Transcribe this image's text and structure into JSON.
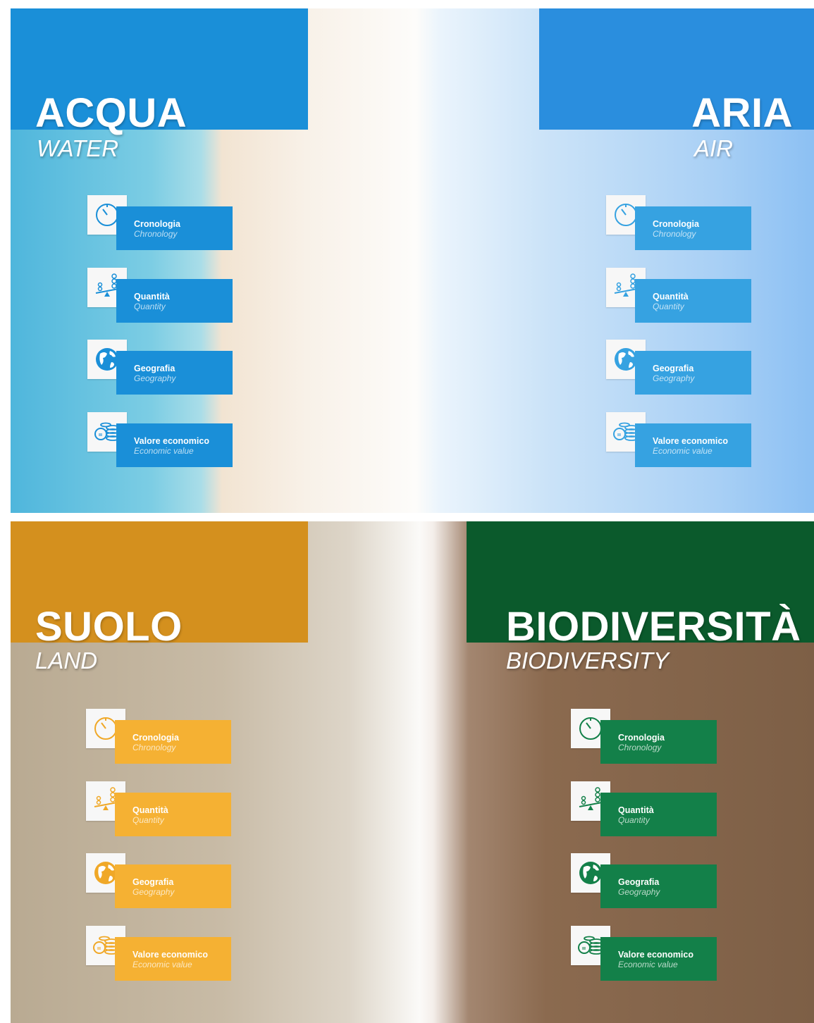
{
  "panels": [
    {
      "title": "ACQUA",
      "subtitle": "WATER",
      "items": [
        {
          "label": "Cronologia",
          "sublabel": "Chronology"
        },
        {
          "label": "Quantità",
          "sublabel": "Quantity"
        },
        {
          "label": "Geografia",
          "sublabel": "Geography"
        },
        {
          "label": "Valore economico",
          "sublabel": "Economic value"
        }
      ]
    },
    {
      "title": "ARIA",
      "subtitle": "AIR",
      "items": [
        {
          "label": "Cronologia",
          "sublabel": "Chronology"
        },
        {
          "label": "Quantità",
          "sublabel": "Quantity"
        },
        {
          "label": "Geografia",
          "sublabel": "Geography"
        },
        {
          "label": "Valore economico",
          "sublabel": "Economic value"
        }
      ]
    },
    {
      "title": "SUOLO",
      "subtitle": "LAND",
      "items": [
        {
          "label": "Cronologia",
          "sublabel": "Chronology"
        },
        {
          "label": "Quantità",
          "sublabel": "Quantity"
        },
        {
          "label": "Geografia",
          "sublabel": "Geography"
        },
        {
          "label": "Valore economico",
          "sublabel": "Economic value"
        }
      ]
    },
    {
      "title": "BIODIVERSITÀ",
      "subtitle": "BIODIVERSITY",
      "items": [
        {
          "label": "Cronologia",
          "sublabel": "Chronology"
        },
        {
          "label": "Quantità",
          "sublabel": "Quantity"
        },
        {
          "label": "Geografia",
          "sublabel": "Geography"
        },
        {
          "label": "Valore economico",
          "sublabel": "Economic value"
        }
      ]
    }
  ]
}
